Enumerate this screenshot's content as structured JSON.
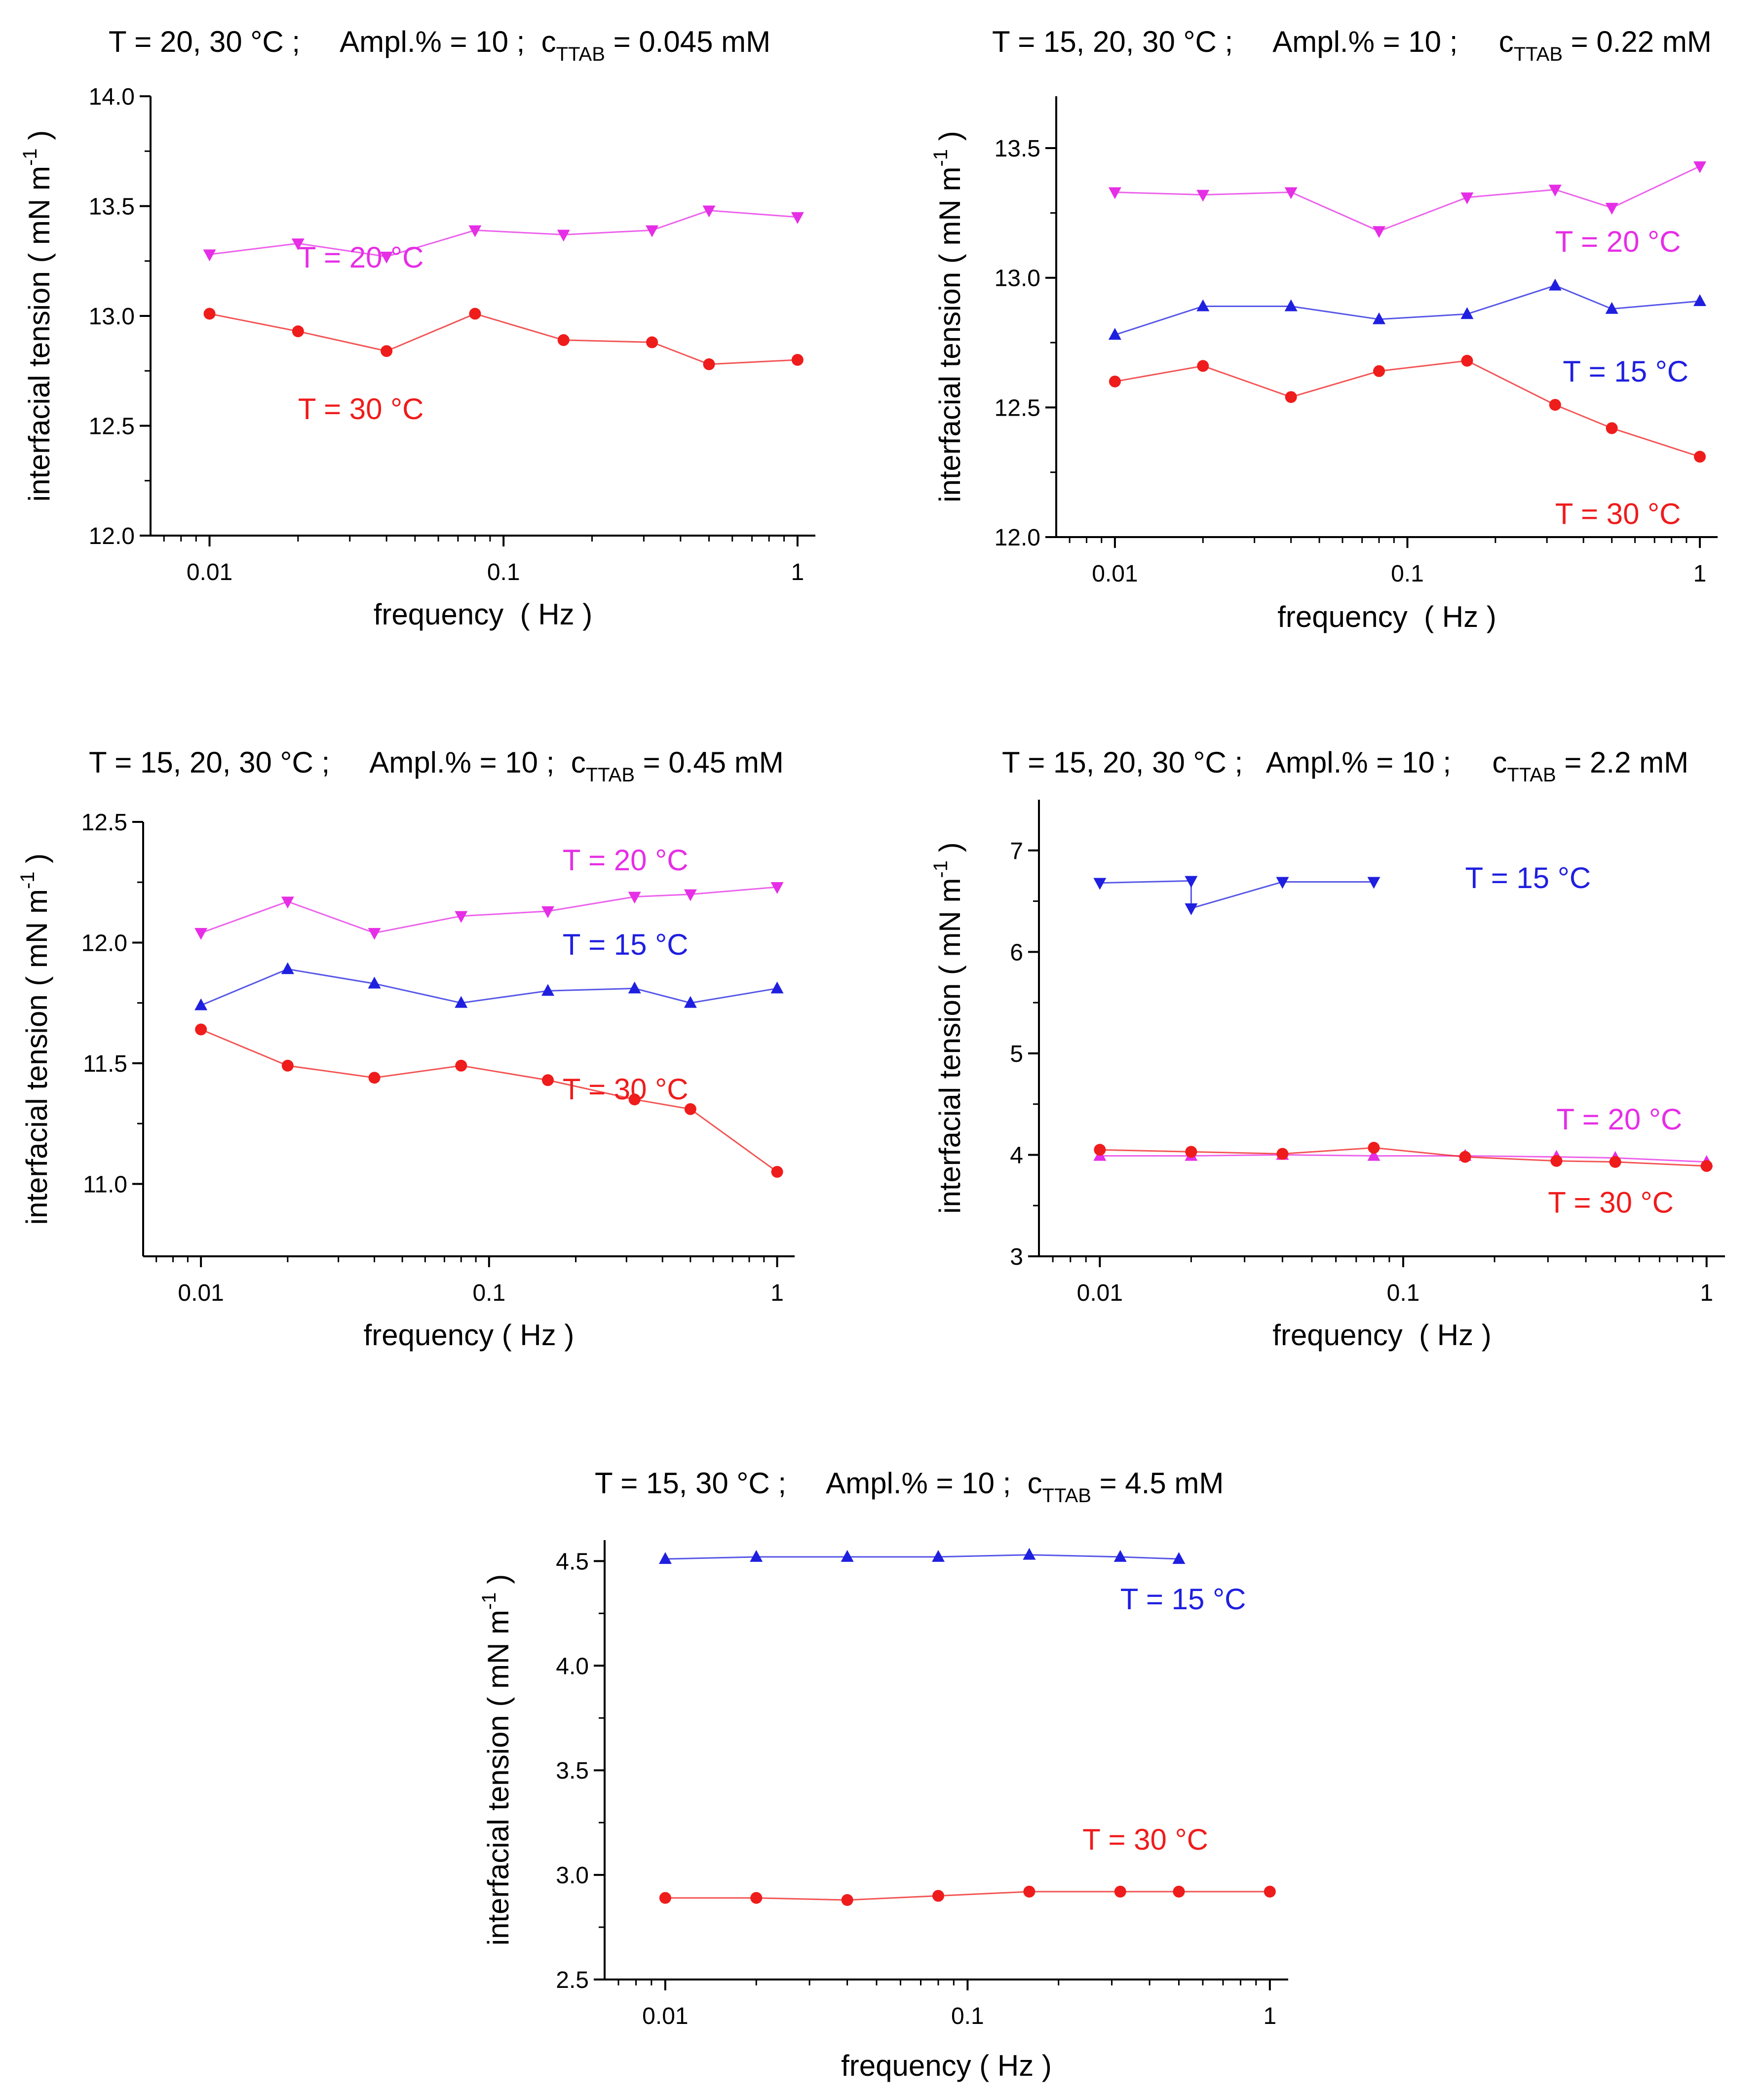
{
  "colors": {
    "t15": "#1f1fe0",
    "t20": "#e62ee6",
    "t30": "#ef1c1c",
    "axis": "#000000"
  },
  "chart_data": [
    {
      "type": "line",
      "title": {
        "prefix": "T = 20, 30 °C ;     Ampl.% = 10 ;  c",
        "sub": "TTAB",
        "suffix": " = 0.045 mM"
      },
      "xlabel": "frequency  ( Hz )",
      "ylabel": "interfacial tension ( mN m",
      "ylabel_sup": "-1",
      "ylabel_end": " )",
      "xscale": "log",
      "xlim": [
        0.0063,
        1.15
      ],
      "xticks": [
        0.01,
        0.1,
        1
      ],
      "xtick_labels": [
        "0.01",
        "0.1",
        "1"
      ],
      "ylim": [
        12.0,
        14.0
      ],
      "yticks": [
        12.0,
        12.5,
        13.0,
        13.5,
        14.0
      ],
      "ytick_labels": [
        "12.0",
        "12.5",
        "13.0",
        "13.5",
        "14.0"
      ],
      "series": [
        {
          "name": "T = 20 °C",
          "color": "t20",
          "marker": "tri-down",
          "x": [
            0.01,
            0.02,
            0.04,
            0.08,
            0.16,
            0.32,
            0.5,
            1
          ],
          "y": [
            13.28,
            13.33,
            13.27,
            13.39,
            13.37,
            13.39,
            13.48,
            13.45
          ],
          "label_at": [
            0.02,
            13.22
          ]
        },
        {
          "name": "T = 30 °C",
          "color": "t30",
          "marker": "circle",
          "x": [
            0.01,
            0.02,
            0.04,
            0.08,
            0.16,
            0.32,
            0.5,
            1
          ],
          "y": [
            13.01,
            12.93,
            12.84,
            13.01,
            12.89,
            12.88,
            12.78,
            12.8
          ],
          "label_at": [
            0.02,
            12.53
          ]
        }
      ]
    },
    {
      "type": "line",
      "title": {
        "prefix": "T = 15, 20, 30 °C ;     Ampl.% = 10 ;     c",
        "sub": "TTAB",
        "suffix": " = 0.22 mM"
      },
      "xlabel": "frequency  ( Hz )",
      "ylabel": "interfacial tension ( mN m",
      "ylabel_sup": "-1",
      "ylabel_end": " )",
      "xscale": "log",
      "xlim": [
        0.0063,
        1.15
      ],
      "xticks": [
        0.01,
        0.1,
        1
      ],
      "xtick_labels": [
        "0.01",
        "0.1",
        "1"
      ],
      "ylim": [
        12.0,
        13.7
      ],
      "yticks": [
        12.0,
        12.5,
        13.0,
        13.5
      ],
      "ytick_labels": [
        "12.0",
        "12.5",
        "13.0",
        "13.5"
      ],
      "series": [
        {
          "name": "T = 20 °C",
          "color": "t20",
          "marker": "tri-down",
          "x": [
            0.01,
            0.02,
            0.04,
            0.08,
            0.16,
            0.32,
            0.5,
            1
          ],
          "y": [
            13.33,
            13.32,
            13.33,
            13.18,
            13.31,
            13.34,
            13.27,
            13.43
          ],
          "label_at": [
            0.32,
            13.1
          ]
        },
        {
          "name": "T = 15 °C",
          "color": "t15",
          "marker": "tri-up",
          "x": [
            0.01,
            0.02,
            0.04,
            0.08,
            0.16,
            0.32,
            0.5,
            1
          ],
          "y": [
            12.78,
            12.89,
            12.89,
            12.84,
            12.86,
            12.97,
            12.88,
            12.91
          ],
          "label_at": [
            0.34,
            12.6
          ]
        },
        {
          "name": "T = 30 °C",
          "color": "t30",
          "marker": "circle",
          "x": [
            0.01,
            0.02,
            0.04,
            0.08,
            0.16,
            0.32,
            0.5,
            1
          ],
          "y": [
            12.6,
            12.66,
            12.54,
            12.64,
            12.68,
            12.51,
            12.42,
            12.31
          ],
          "label_at": [
            0.32,
            12.05
          ]
        }
      ]
    },
    {
      "type": "line",
      "title": {
        "prefix": "T = 15, 20, 30 °C ;     Ampl.% = 10 ;  c",
        "sub": "TTAB",
        "suffix": " = 0.45 mM"
      },
      "xlabel": "frequency ( Hz )",
      "ylabel": "interfacial tension ( mN m",
      "ylabel_sup": "-1",
      "ylabel_end": " )",
      "xscale": "log",
      "xlim": [
        0.0063,
        1.15
      ],
      "xticks": [
        0.01,
        0.1,
        1
      ],
      "xtick_labels": [
        "0.01",
        "0.1",
        "1"
      ],
      "ylim": [
        10.7,
        12.5
      ],
      "yticks": [
        11.0,
        11.5,
        12.0,
        12.5
      ],
      "ytick_labels": [
        "11.0",
        "11.5",
        "12.0",
        "12.5"
      ],
      "series": [
        {
          "name": "T = 20 °C",
          "color": "t20",
          "marker": "tri-down",
          "x": [
            0.01,
            0.02,
            0.04,
            0.08,
            0.16,
            0.32,
            0.5,
            1
          ],
          "y": [
            12.04,
            12.17,
            12.04,
            12.11,
            12.13,
            12.19,
            12.2,
            12.23
          ],
          "label_at": [
            0.18,
            12.3
          ]
        },
        {
          "name": "T = 15 °C",
          "color": "t15",
          "marker": "tri-up",
          "x": [
            0.01,
            0.02,
            0.04,
            0.08,
            0.16,
            0.32,
            0.5,
            1
          ],
          "y": [
            11.74,
            11.89,
            11.83,
            11.75,
            11.8,
            11.81,
            11.75,
            11.81
          ],
          "label_at": [
            0.18,
            11.95
          ]
        },
        {
          "name": "T = 30 °C",
          "color": "t30",
          "marker": "circle",
          "x": [
            0.01,
            0.02,
            0.04,
            0.08,
            0.16,
            0.32,
            0.5,
            1
          ],
          "y": [
            11.64,
            11.49,
            11.44,
            11.49,
            11.43,
            11.35,
            11.31,
            11.05
          ],
          "label_at": [
            0.18,
            11.35
          ]
        }
      ]
    },
    {
      "type": "line",
      "title": {
        "prefix": "T = 15, 20, 30 °C ;   Ampl.% = 10 ;     c",
        "sub": "TTAB",
        "suffix": " = 2.2 mM"
      },
      "xlabel": "frequency  ( Hz )",
      "ylabel": "interfacial tension ( mN m",
      "ylabel_sup": "-1",
      "ylabel_end": " )",
      "xscale": "log",
      "xlim": [
        0.0063,
        1.15
      ],
      "xticks": [
        0.01,
        0.1,
        1
      ],
      "xtick_labels": [
        "0.01",
        "0.1",
        "1"
      ],
      "ylim": [
        3,
        7.5
      ],
      "yticks": [
        3,
        4,
        5,
        6,
        7
      ],
      "ytick_labels": [
        "3",
        "4",
        "5",
        "6",
        "7"
      ],
      "series": [
        {
          "name": "T = 15 °C",
          "color": "t15",
          "marker": "tri-down",
          "x": [
            0.01,
            0.02,
            0.02,
            0.04,
            0.08
          ],
          "y": [
            6.68,
            6.7,
            6.43,
            6.69,
            6.69
          ],
          "label_at": [
            0.16,
            6.63
          ]
        },
        {
          "name": "T = 20 °C",
          "color": "t20",
          "marker": "tri-up",
          "x": [
            0.01,
            0.02,
            0.04,
            0.08,
            0.16,
            0.32,
            0.5,
            1
          ],
          "y": [
            3.99,
            3.99,
            4.0,
            3.99,
            3.99,
            3.98,
            3.97,
            3.93
          ],
          "label_at": [
            0.32,
            4.25
          ]
        },
        {
          "name": "T = 30 °C",
          "color": "t30",
          "marker": "circle",
          "x": [
            0.01,
            0.02,
            0.04,
            0.08,
            0.16,
            0.32,
            0.5,
            1
          ],
          "y": [
            4.05,
            4.03,
            4.01,
            4.07,
            3.98,
            3.94,
            3.93,
            3.89
          ],
          "label_at": [
            0.3,
            3.43
          ]
        }
      ]
    },
    {
      "type": "line",
      "title": {
        "prefix": "T = 15, 30 °C ;     Ampl.% = 10 ;  c",
        "sub": "TTAB",
        "suffix": " = 4.5 mM"
      },
      "xlabel": "frequency ( Hz )",
      "ylabel": "interfacial tension ( mN m",
      "ylabel_sup": "-1",
      "ylabel_end": " )",
      "xscale": "log",
      "xlim": [
        0.0063,
        1.15
      ],
      "xticks": [
        0.01,
        0.1,
        1
      ],
      "xtick_labels": [
        "0.01",
        "0.1",
        "1"
      ],
      "ylim": [
        2.5,
        4.6
      ],
      "yticks": [
        2.5,
        3.0,
        3.5,
        4.0,
        4.5
      ],
      "ytick_labels": [
        "2.5",
        "3.0",
        "3.5",
        "4.0",
        "4.5"
      ],
      "series": [
        {
          "name": "T = 15 °C",
          "color": "t15",
          "marker": "tri-up",
          "x": [
            0.01,
            0.02,
            0.04,
            0.08,
            0.16,
            0.32,
            0.5
          ],
          "y": [
            4.51,
            4.52,
            4.52,
            4.52,
            4.53,
            4.52,
            4.51
          ],
          "label_at": [
            0.32,
            4.27
          ]
        },
        {
          "name": "T = 30 °C",
          "color": "t30",
          "marker": "circle",
          "x": [
            0.01,
            0.02,
            0.04,
            0.08,
            0.16,
            0.32,
            0.5,
            1
          ],
          "y": [
            2.89,
            2.89,
            2.88,
            2.9,
            2.92,
            2.92,
            2.92,
            2.92
          ],
          "label_at": [
            0.24,
            3.12
          ]
        }
      ]
    }
  ]
}
